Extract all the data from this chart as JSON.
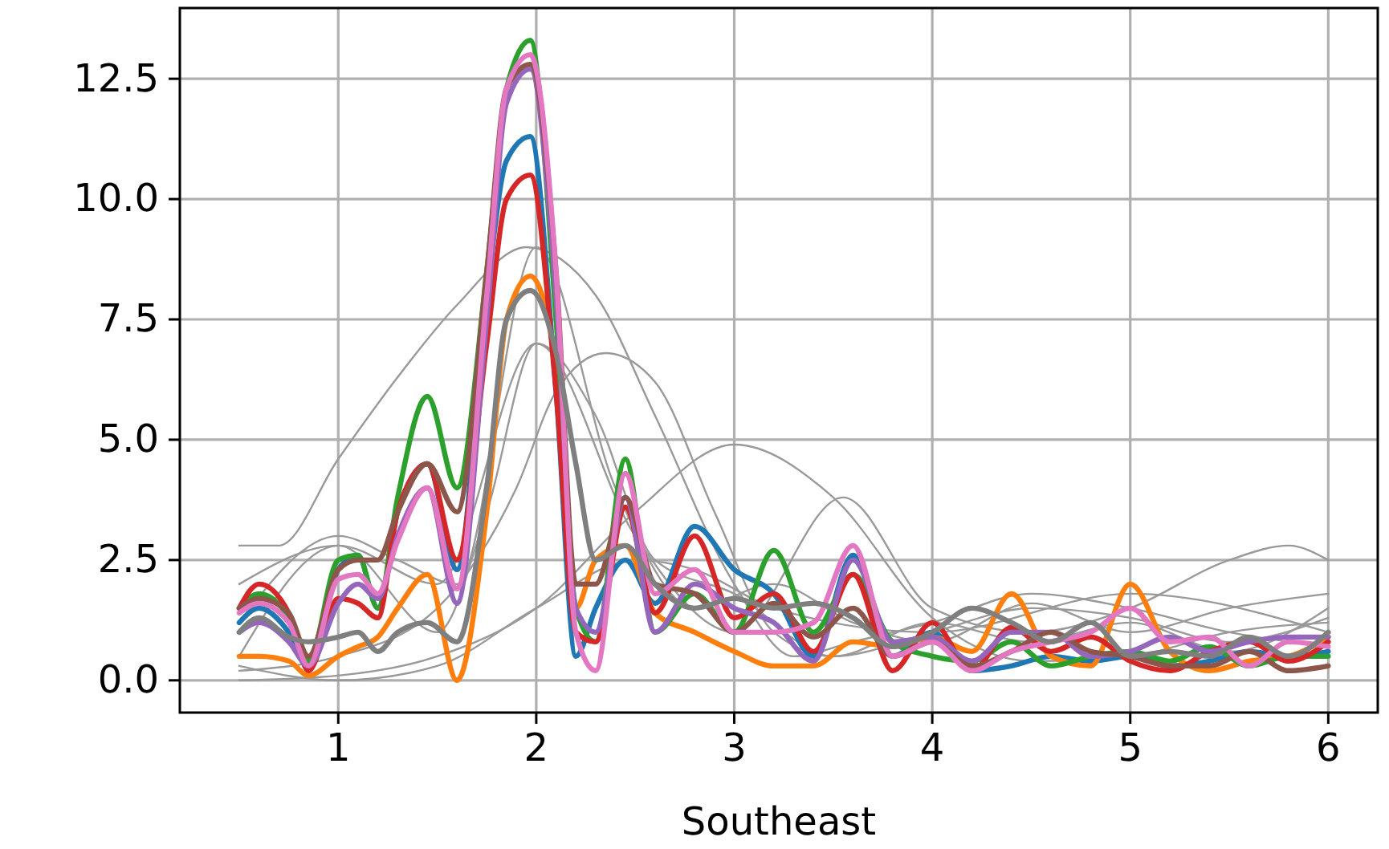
{
  "chart_data": {
    "type": "line",
    "xlabel": "Southeast",
    "x": [
      0.5,
      0.6,
      0.75,
      0.85,
      1.0,
      1.1,
      1.2,
      1.3,
      1.45,
      1.6,
      1.75,
      1.85,
      1.97,
      2.1,
      2.2,
      2.3,
      2.45,
      2.6,
      2.8,
      3.0,
      3.2,
      3.4,
      3.6,
      3.8,
      4.0,
      4.2,
      4.4,
      4.6,
      4.8,
      5.0,
      5.2,
      5.4,
      5.6,
      5.8,
      6.0
    ],
    "xlim": [
      0.2,
      6.25
    ],
    "ylim": [
      -0.67,
      13.97
    ],
    "xticks": [
      1,
      2,
      3,
      4,
      5,
      6
    ],
    "yticks": [
      {
        "value": 0,
        "label": "0.0"
      },
      {
        "value": 2.5,
        "label": "2.5"
      },
      {
        "value": 5,
        "label": "5.0"
      },
      {
        "value": 7.5,
        "label": "7.5"
      },
      {
        "value": 10,
        "label": "10.0"
      },
      {
        "value": 12.5,
        "label": "12.5"
      }
    ],
    "grid": true,
    "line_style": "solid",
    "marker": "none",
    "series": [
      {
        "color": "#999999",
        "x": [
          0.5,
          0.7,
          1.0,
          1.3,
          1.6,
          1.95,
          2.3,
          2.6,
          3.0,
          3.3,
          3.6,
          4.0,
          4.5,
          5.0,
          5.5,
          6.0
        ],
        "values": [
          2.8,
          2.8,
          4.6,
          6.3,
          7.8,
          9.0,
          8.0,
          5.5,
          2.0,
          0.5,
          0.8,
          1.2,
          1.8,
          1.5,
          1.0,
          0.7
        ]
      },
      {
        "color": "#999999",
        "x": [
          0.5,
          1.0,
          1.5,
          1.9,
          2.1,
          2.35,
          2.6,
          2.9,
          3.2,
          3.5,
          4.0,
          4.5,
          5.0,
          5.5,
          6.0
        ],
        "values": [
          0.2,
          0.5,
          1.5,
          4.0,
          6.0,
          6.8,
          6.2,
          3.5,
          1.0,
          0.5,
          1.0,
          1.5,
          1.3,
          0.8,
          1.3
        ]
      },
      {
        "color": "#999999",
        "x": [
          0.5,
          1.0,
          1.5,
          2.0,
          2.5,
          3.0,
          3.5,
          4.0,
          4.5,
          5.0,
          5.5,
          6.0
        ],
        "values": [
          0.0,
          0.1,
          0.5,
          1.5,
          3.5,
          4.9,
          3.8,
          1.3,
          0.4,
          0.5,
          1.0,
          1.2
        ]
      },
      {
        "color": "#999999",
        "x": [
          0.5,
          1.0,
          1.5,
          2.0,
          2.5,
          3.0,
          3.55,
          4.0,
          4.5,
          5.0,
          5.5,
          5.8,
          6.0
        ],
        "values": [
          2.0,
          2.8,
          2.0,
          7.0,
          3.0,
          1.0,
          3.8,
          1.5,
          1.0,
          1.5,
          2.5,
          2.8,
          2.5
        ]
      },
      {
        "color": "#999999",
        "x": [
          0.5,
          1.0,
          1.3,
          1.6,
          2.0,
          2.4,
          2.8,
          3.2,
          3.6,
          4.0,
          4.5,
          5.0,
          5.5,
          6.0
        ],
        "values": [
          1.2,
          3.0,
          2.5,
          2.0,
          9.0,
          4.0,
          1.5,
          2.0,
          1.2,
          0.8,
          1.6,
          1.0,
          1.5,
          1.8
        ]
      },
      {
        "color": "#999999",
        "x": [
          0.5,
          1.0,
          1.5,
          1.75,
          2.0,
          2.3,
          2.6,
          3.0,
          3.5,
          4.0,
          4.5,
          5.0,
          5.5,
          6.0
        ],
        "values": [
          0.5,
          2.8,
          1.0,
          3.5,
          7.0,
          5.5,
          2.5,
          1.8,
          0.5,
          1.2,
          0.8,
          1.2,
          0.6,
          1.5
        ]
      },
      {
        "color": "#999999",
        "x": [
          0.5,
          1.0,
          1.5,
          2.0,
          2.5,
          2.8,
          3.2,
          4.0,
          5.0,
          6.0
        ],
        "values": [
          0.3,
          0.0,
          0.3,
          1.5,
          2.5,
          2.3,
          1.5,
          1.0,
          1.8,
          1.0
        ]
      },
      {
        "color": "#1f77b4",
        "values": [
          1.2,
          1.5,
          1.0,
          0.3,
          2.3,
          2.6,
          1.5,
          3.5,
          4.5,
          2.3,
          8.0,
          10.8,
          11.3,
          6.0,
          0.5,
          1.5,
          2.5,
          1.6,
          3.2,
          2.3,
          1.8,
          0.5,
          2.6,
          0.5,
          1.0,
          0.2,
          0.3,
          0.5,
          0.4,
          0.5,
          0.3,
          0.4,
          0.6,
          0.5,
          0.6
        ]
      },
      {
        "color": "#ff7f0e",
        "values": [
          0.5,
          0.5,
          0.4,
          0.1,
          0.5,
          0.7,
          0.9,
          1.5,
          2.2,
          0.0,
          3.5,
          7.5,
          8.4,
          6.5,
          1.5,
          2.5,
          2.8,
          1.4,
          1.0,
          0.6,
          0.3,
          0.3,
          0.8,
          0.7,
          0.9,
          0.6,
          1.8,
          0.5,
          0.3,
          2.0,
          0.6,
          0.2,
          0.4,
          0.5,
          0.9
        ]
      },
      {
        "color": "#2ca02c",
        "values": [
          1.5,
          1.8,
          1.3,
          0.4,
          2.5,
          2.6,
          1.5,
          3.8,
          5.9,
          4.0,
          8.5,
          12.3,
          13.3,
          7.5,
          1.5,
          0.8,
          4.6,
          1.0,
          1.8,
          1.0,
          2.7,
          1.0,
          2.2,
          0.8,
          0.5,
          0.4,
          0.8,
          0.3,
          0.5,
          0.6,
          0.4,
          0.7,
          0.3,
          0.5,
          0.5
        ]
      },
      {
        "color": "#d62728",
        "values": [
          1.5,
          2.0,
          1.4,
          0.2,
          1.7,
          1.6,
          1.3,
          3.5,
          4.5,
          2.5,
          7.0,
          10.0,
          10.5,
          6.0,
          1.0,
          0.8,
          3.6,
          1.4,
          3.0,
          1.3,
          1.8,
          0.6,
          2.2,
          0.2,
          1.2,
          0.2,
          1.1,
          0.6,
          0.9,
          0.4,
          0.2,
          0.6,
          0.8,
          0.4,
          0.8
        ]
      },
      {
        "color": "#9467bd",
        "values": [
          1.0,
          1.2,
          0.8,
          0.3,
          1.6,
          2.0,
          1.7,
          3.0,
          4.0,
          1.6,
          7.5,
          12.0,
          12.7,
          8.0,
          1.5,
          1.0,
          3.8,
          1.0,
          2.0,
          1.5,
          1.2,
          0.4,
          2.5,
          0.8,
          0.9,
          0.4,
          1.0,
          1.0,
          0.5,
          0.6,
          0.9,
          0.6,
          0.8,
          0.9,
          0.9
        ]
      },
      {
        "color": "#8c564b",
        "values": [
          1.5,
          1.7,
          1.4,
          0.5,
          2.3,
          2.5,
          2.5,
          3.5,
          4.5,
          3.5,
          8.5,
          12.3,
          12.8,
          8.5,
          2.0,
          2.0,
          3.8,
          2.0,
          1.8,
          1.0,
          1.6,
          0.9,
          1.5,
          0.5,
          0.8,
          0.3,
          0.6,
          1.0,
          0.6,
          0.5,
          0.3,
          0.3,
          0.6,
          0.2,
          0.3
        ]
      },
      {
        "color": "#e377c2",
        "values": [
          1.4,
          1.6,
          1.2,
          0.3,
          2.1,
          2.2,
          1.8,
          2.9,
          4.0,
          1.9,
          8.0,
          12.3,
          13.0,
          8.5,
          1.0,
          0.2,
          4.3,
          1.8,
          2.3,
          1.0,
          1.0,
          1.2,
          2.8,
          0.5,
          0.8,
          0.2,
          0.6,
          0.8,
          1.0,
          1.5,
          0.8,
          0.9,
          0.3,
          0.8,
          0.7
        ]
      },
      {
        "color": "#7f7f7f",
        "values": [
          1.0,
          1.3,
          0.9,
          0.8,
          0.9,
          1.0,
          0.6,
          1.0,
          1.2,
          0.8,
          4.0,
          7.5,
          8.1,
          6.8,
          4.5,
          2.5,
          2.8,
          2.0,
          1.5,
          1.7,
          1.5,
          1.6,
          1.3,
          0.7,
          1.0,
          1.5,
          1.2,
          0.8,
          1.2,
          0.5,
          0.6,
          0.5,
          0.9,
          0.5,
          1.0
        ]
      }
    ]
  }
}
